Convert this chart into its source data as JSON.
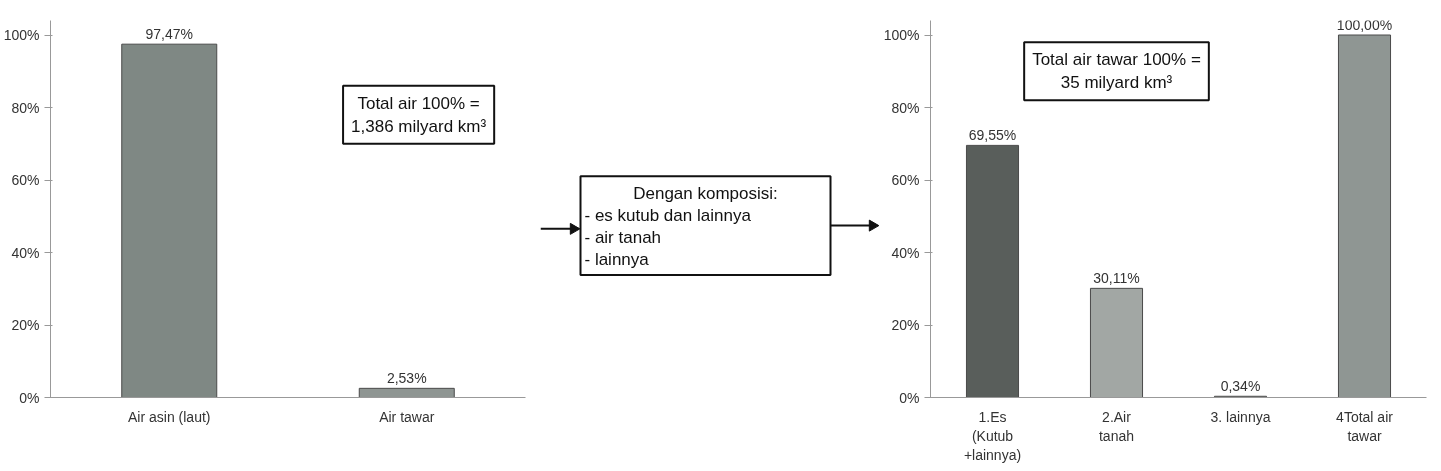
{
  "chart_data": [
    {
      "type": "bar",
      "categories": [
        "Air asin (laut)",
        "Air tawar"
      ],
      "values": [
        97.47,
        2.53
      ],
      "colors": [
        "#7f8884",
        "#8e9592"
      ],
      "value_labels": [
        "97,47%",
        "2,53%"
      ],
      "ylim": [
        0,
        104
      ],
      "yticks": [
        {
          "value": 0,
          "label": "0%"
        },
        {
          "value": 20,
          "label": "20%"
        },
        {
          "value": 40,
          "label": "40%"
        },
        {
          "value": 60,
          "label": "60%"
        },
        {
          "value": 80,
          "label": "80%"
        },
        {
          "value": 100,
          "label": "100%"
        }
      ],
      "annotations": [
        "Total air 100% =\n1,386 milyard km³"
      ]
    },
    {
      "type": "other",
      "annotations": [
        "Dengan komposisi:",
        "- es kutub dan lainnya",
        "- air tanah",
        "- lainnya"
      ]
    },
    {
      "type": "bar",
      "categories": [
        "1.Es\n(Kutub\n+lainnya)",
        "2.Air\ntanah",
        "3. lainnya",
        "4Total air\ntawar"
      ],
      "values": [
        69.55,
        30.11,
        0.34,
        100
      ],
      "colors": [
        "#595e5b",
        "#a2a7a4",
        "#a2a7a4",
        "#8f9693"
      ],
      "value_labels": [
        "69,55%",
        "30,11%",
        "0,34%",
        "100,00%"
      ],
      "ylim": [
        0,
        104
      ],
      "yticks": [
        {
          "value": 0,
          "label": "0%"
        },
        {
          "value": 20,
          "label": "20%"
        },
        {
          "value": 40,
          "label": "40%"
        },
        {
          "value": 60,
          "label": "60%"
        },
        {
          "value": 80,
          "label": "80%"
        },
        {
          "value": 100,
          "label": "100%"
        }
      ],
      "annotations": [
        "Total air tawar 100% =\n35 milyard km³"
      ]
    }
  ]
}
